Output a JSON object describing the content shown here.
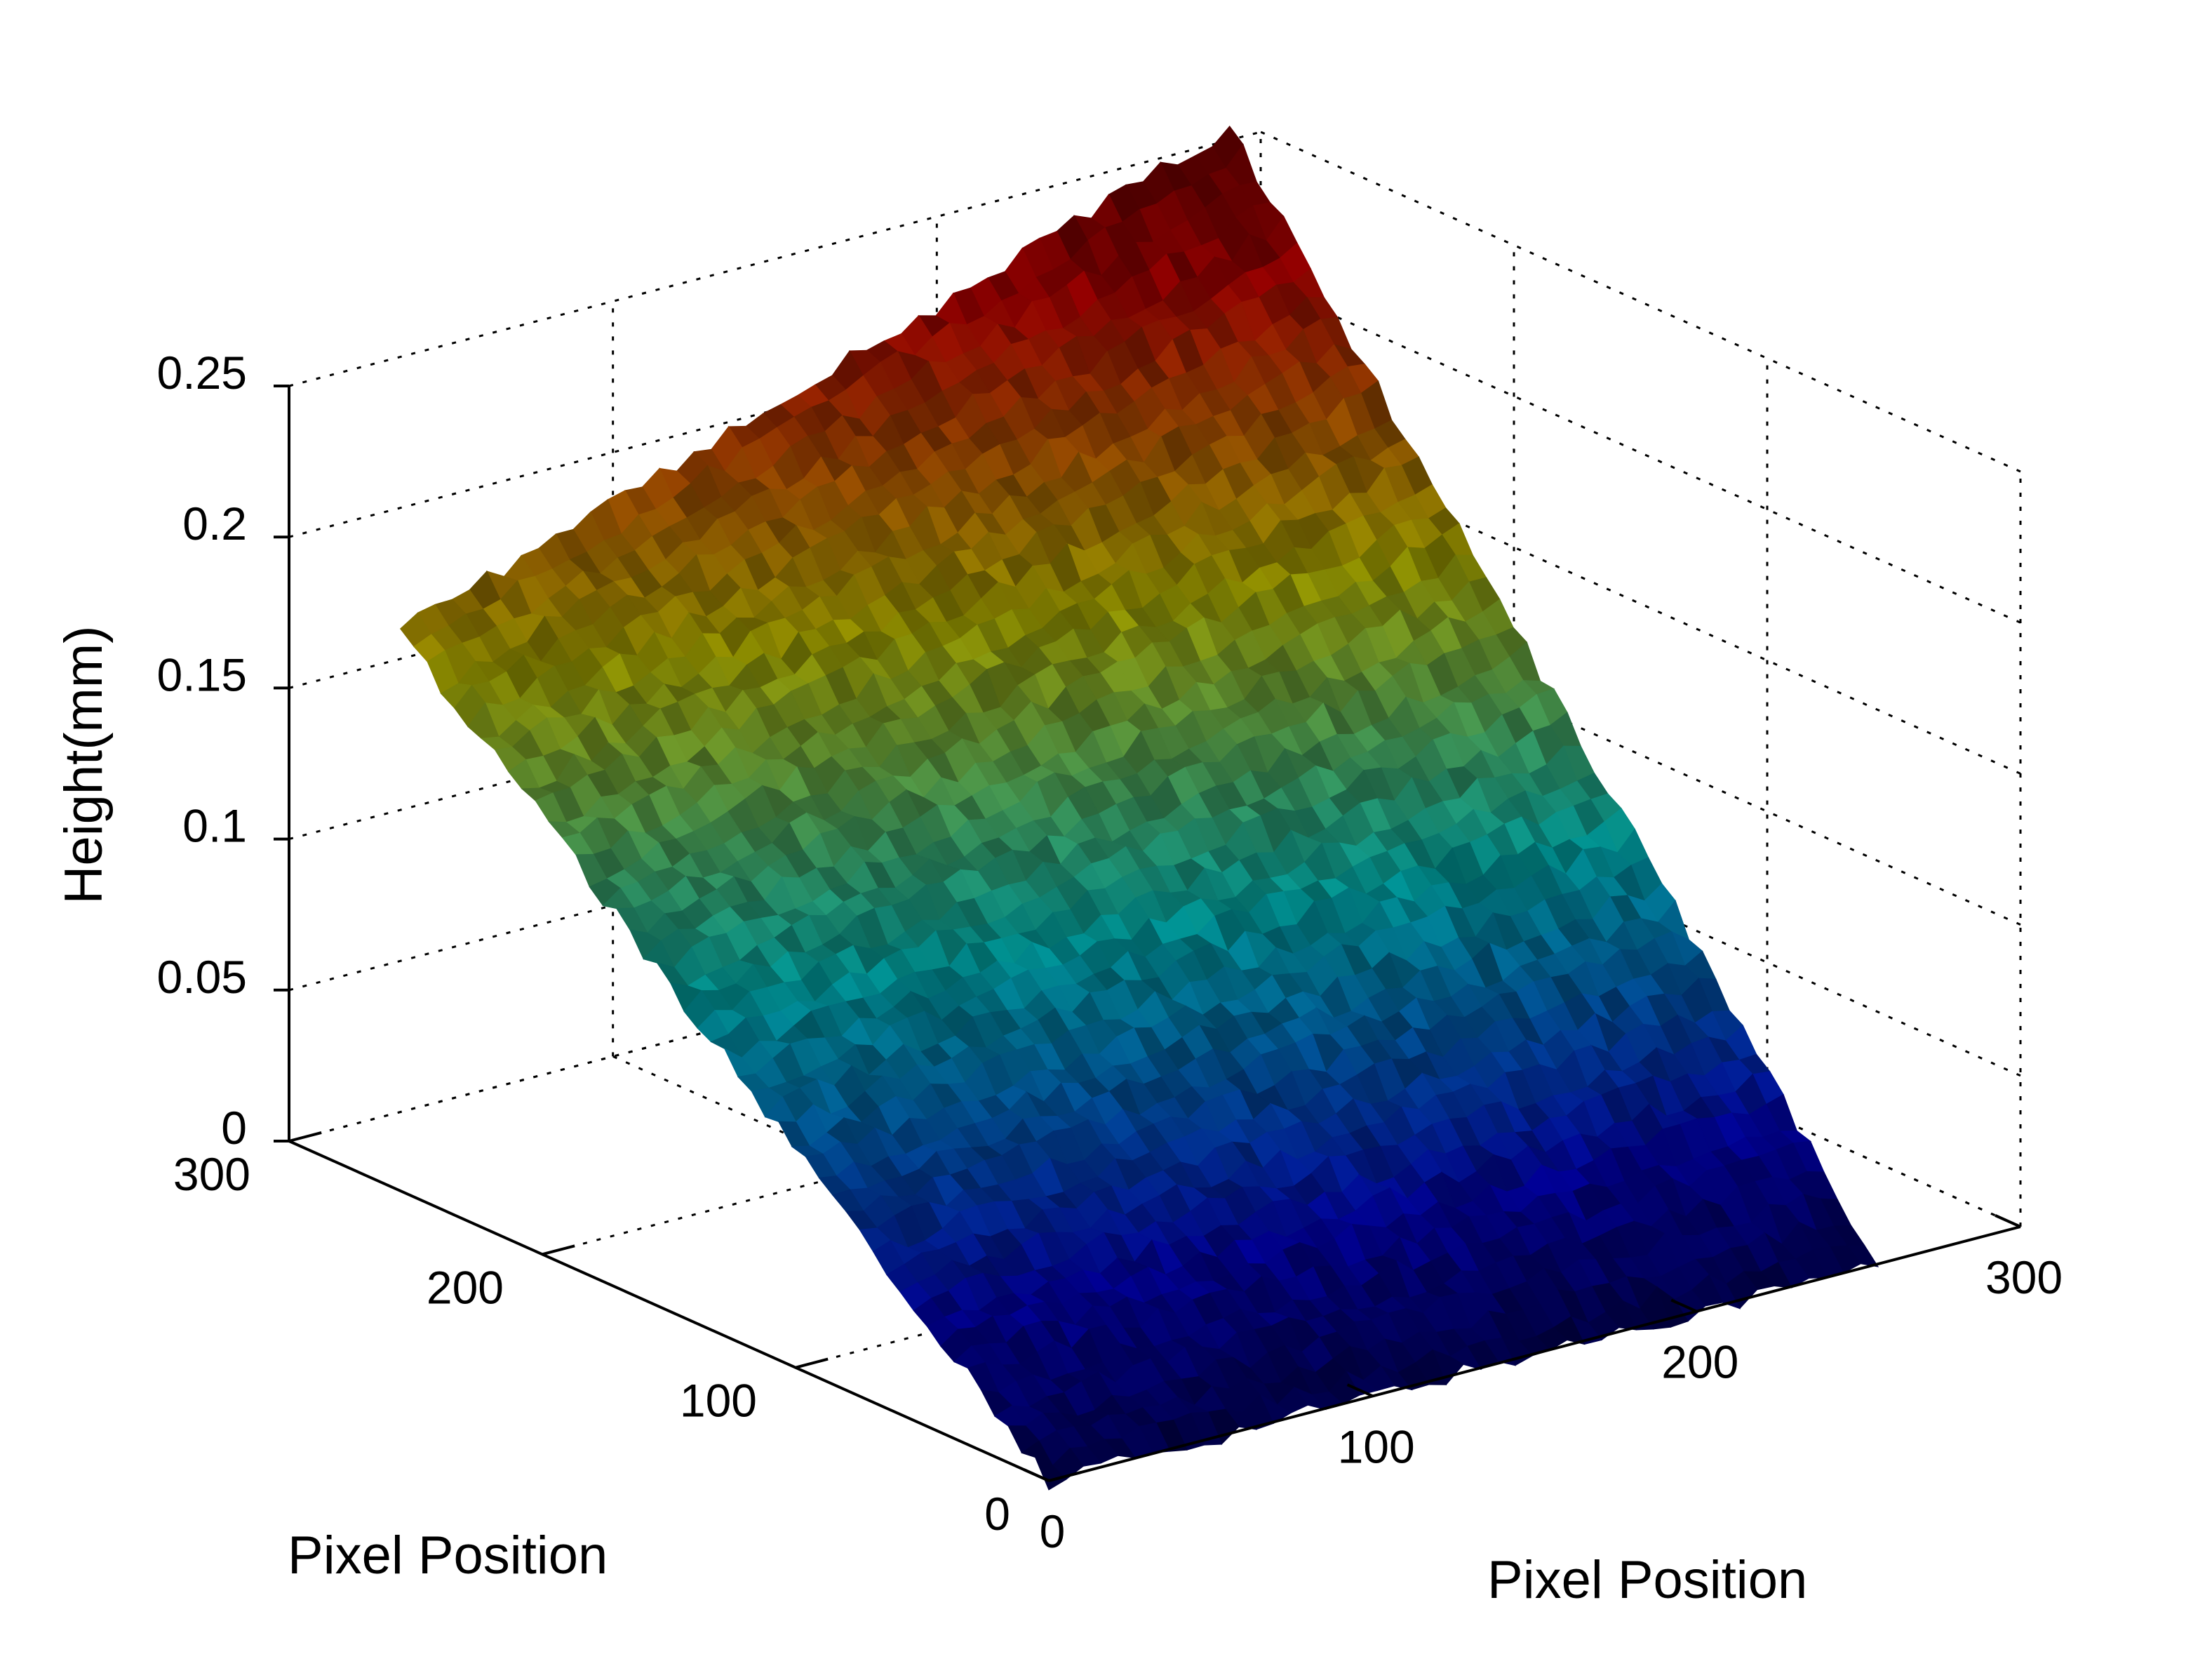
{
  "chart_data": {
    "type": "surface",
    "title": "",
    "xlabel": "Pixel Position",
    "ylabel": "Pixel Position",
    "zlabel": "Height(mm)",
    "xlim": [
      0,
      300
    ],
    "ylim": [
      0,
      300
    ],
    "zlim": [
      0,
      0.25
    ],
    "xticks": [
      "0",
      "100",
      "200",
      "300"
    ],
    "yticks": [
      "0",
      "100",
      "200",
      "300"
    ],
    "zticks": [
      "0",
      "0.05",
      "0.1",
      "0.15",
      "0.2",
      "0.25"
    ],
    "grid": true,
    "colormap": "jet (darkened)",
    "surface": {
      "x_extent": [
        0,
        256
      ],
      "y_extent": [
        0,
        256
      ],
      "corner_heights": {
        "x0_y0": 0.0,
        "xmax_y0": 0.0,
        "x0_ymax": 0.185,
        "xmax_ymax": 0.28
      },
      "texture": "small random ripples"
    }
  }
}
